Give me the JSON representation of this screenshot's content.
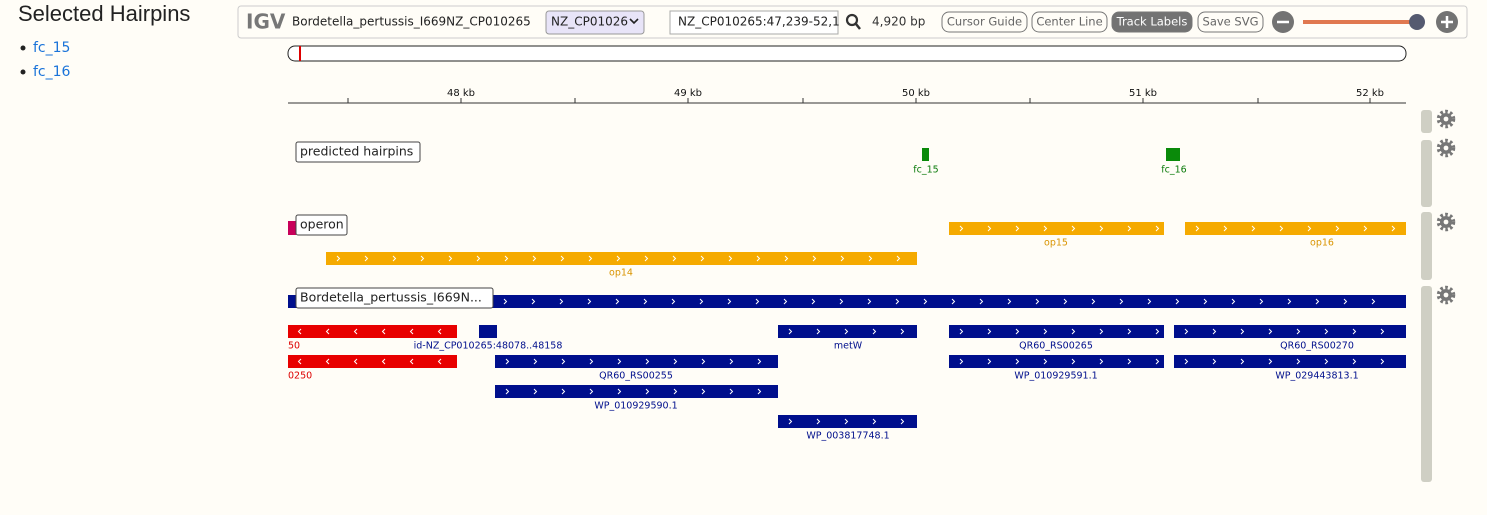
{
  "sidebar": {
    "title": "Selected Hairpins",
    "items": [
      "fc_15",
      "fc_16"
    ]
  },
  "toolbar": {
    "logo": "IGV",
    "genome": "Bordetella_pertussis_I669NZ_CP010265",
    "chromosome": "NZ_CP01026",
    "locus": "NZ_CP010265:47,239-52,1",
    "width": "4,920 bp",
    "buttons": [
      "Cursor Guide",
      "Center Line",
      "Track Labels",
      "Save SVG"
    ]
  },
  "ruler": {
    "labels": [
      "48 kb",
      "49 kb",
      "50 kb",
      "51 kb",
      "52 kb"
    ]
  },
  "tracks": [
    {
      "label": "predicted hairpins",
      "features": [
        "fc_15",
        "fc_16"
      ]
    },
    {
      "label": "operon",
      "features": [
        "op14",
        "op15",
        "op16"
      ]
    },
    {
      "label": "Bordetella_pertussis_I669N...",
      "features": [
        "50",
        "id-NZ_CP010265:48078..48158",
        "metW",
        "QR60_RS00265",
        "QR60_RS00270",
        "0250",
        "QR60_RS00255",
        "WP_010929591.1",
        "WP_029443813.1",
        "WP_010929590.1",
        "WP_003817748.1"
      ]
    }
  ]
}
